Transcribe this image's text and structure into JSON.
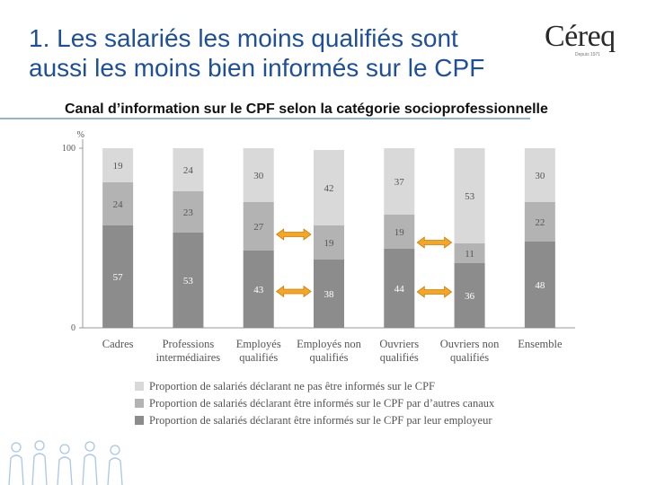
{
  "title": {
    "line1": "1. Les salariés les moins qualifiés sont",
    "line2": "aussi les moins bien informés sur le CPF"
  },
  "logo": {
    "name": "Céreq",
    "tagline": "Depuis 1971"
  },
  "subtitle": "Canal d’information sur le CPF selon la catégorie socioprofessionnelle",
  "colors": {
    "title": "#1e4f9a",
    "light": "#d9d9d9",
    "mid": "#b3b3b3",
    "dark": "#8c8c8c",
    "arrow": "#f5a623"
  },
  "chart_data": {
    "type": "bar",
    "stacked": true,
    "ylabel": "%",
    "ylim": [
      0,
      100
    ],
    "yticks": [
      "0",
      "100"
    ],
    "categories": [
      [
        "Cadres"
      ],
      [
        "Professions",
        "intermédiaires"
      ],
      [
        "Employés",
        "qualifiés"
      ],
      [
        "Employés non",
        "qualifiés"
      ],
      [
        "Ouvriers",
        "qualifiés"
      ],
      [
        "Ouvriers non",
        "qualifiés"
      ],
      [
        "Ensemble"
      ]
    ],
    "series": [
      {
        "name": "Proportion de salariés déclarant être informés sur le CPF par leur employeur",
        "values": [
          57,
          53,
          43,
          38,
          44,
          36,
          48
        ]
      },
      {
        "name": "Proportion de salariés déclarant être informés sur le CPF par d’autres canaux",
        "values": [
          24,
          23,
          27,
          19,
          19,
          11,
          22
        ]
      },
      {
        "name": "Proportion de salariés déclarant ne pas être informés sur le CPF",
        "values": [
          19,
          24,
          30,
          42,
          37,
          53,
          30
        ]
      }
    ],
    "legend_order": [
      2,
      1,
      0
    ],
    "comparison_arrows": [
      {
        "between": [
          "Employés qualifiés",
          "Employés non qualifiés"
        ],
        "series": "par d’autres canaux"
      },
      {
        "between": [
          "Employés qualifiés",
          "Employés non qualifiés"
        ],
        "series": "par leur employeur"
      },
      {
        "between": [
          "Ouvriers qualifiés",
          "Ouvriers non qualifiés"
        ],
        "series": "par d’autres canaux"
      },
      {
        "between": [
          "Ouvriers qualifiés",
          "Ouvriers non qualifiés"
        ],
        "series": "par leur employeur"
      }
    ]
  }
}
